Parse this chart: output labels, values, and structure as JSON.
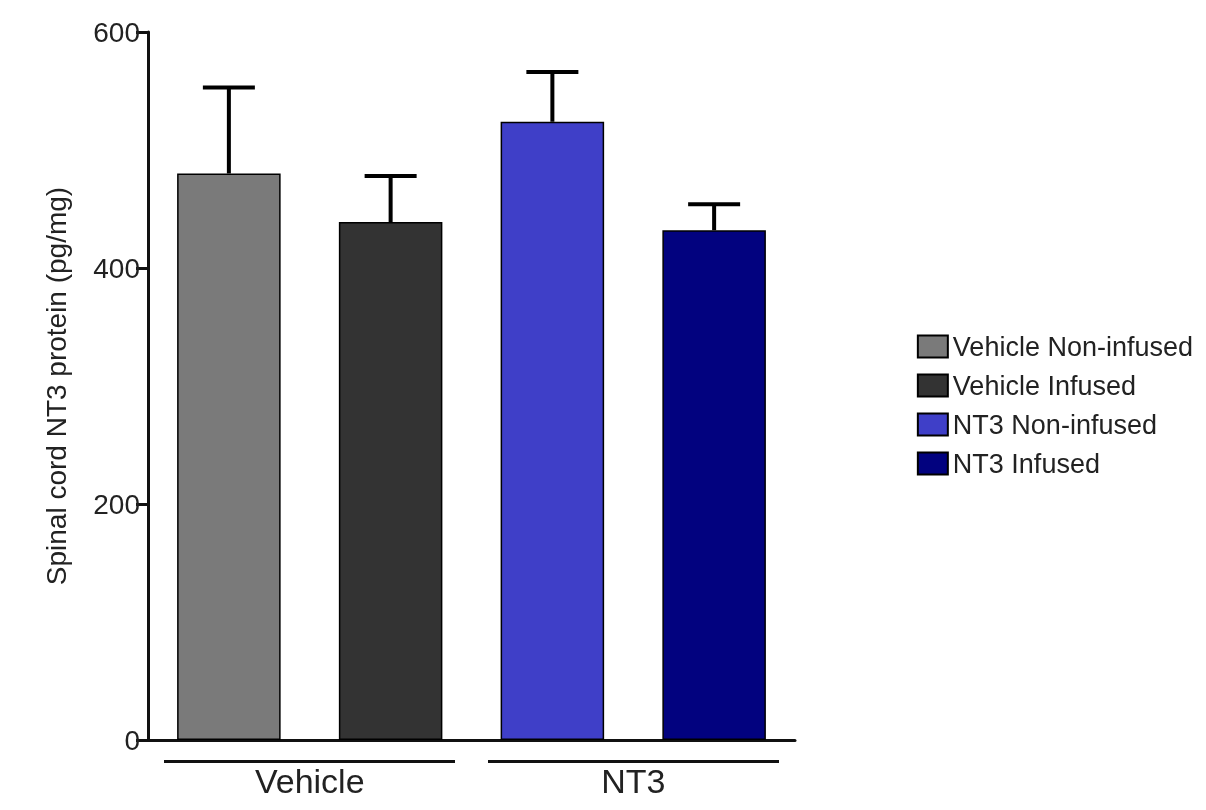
{
  "chart_data": {
    "type": "bar",
    "ylabel": "Spinal cord NT3 protein (pg/mg)",
    "categories": [
      "Vehicle",
      "NT3"
    ],
    "series": [
      {
        "name": "Vehicle Non-infused",
        "color": "#7a7a7a",
        "values": [
          480,
          null
        ],
        "errors": [
          [
            480,
            553
          ],
          null
        ]
      },
      {
        "name": "Vehicle Infused",
        "color": "#333333",
        "values": [
          439,
          null
        ],
        "errors": [
          [
            439,
            478
          ],
          null
        ]
      },
      {
        "name": "NT3 Non-infused",
        "color": "#3f3fc8",
        "values": [
          null,
          524
        ],
        "errors": [
          null,
          [
            524,
            566
          ]
        ]
      },
      {
        "name": "NT3 Infused",
        "color": "#02027f",
        "values": [
          null,
          432
        ],
        "errors": [
          null,
          [
            432,
            454
          ]
        ]
      }
    ],
    "ylim": [
      0,
      600
    ],
    "yticks": [
      0,
      200,
      400,
      600
    ],
    "grid": false,
    "legend": "right"
  }
}
